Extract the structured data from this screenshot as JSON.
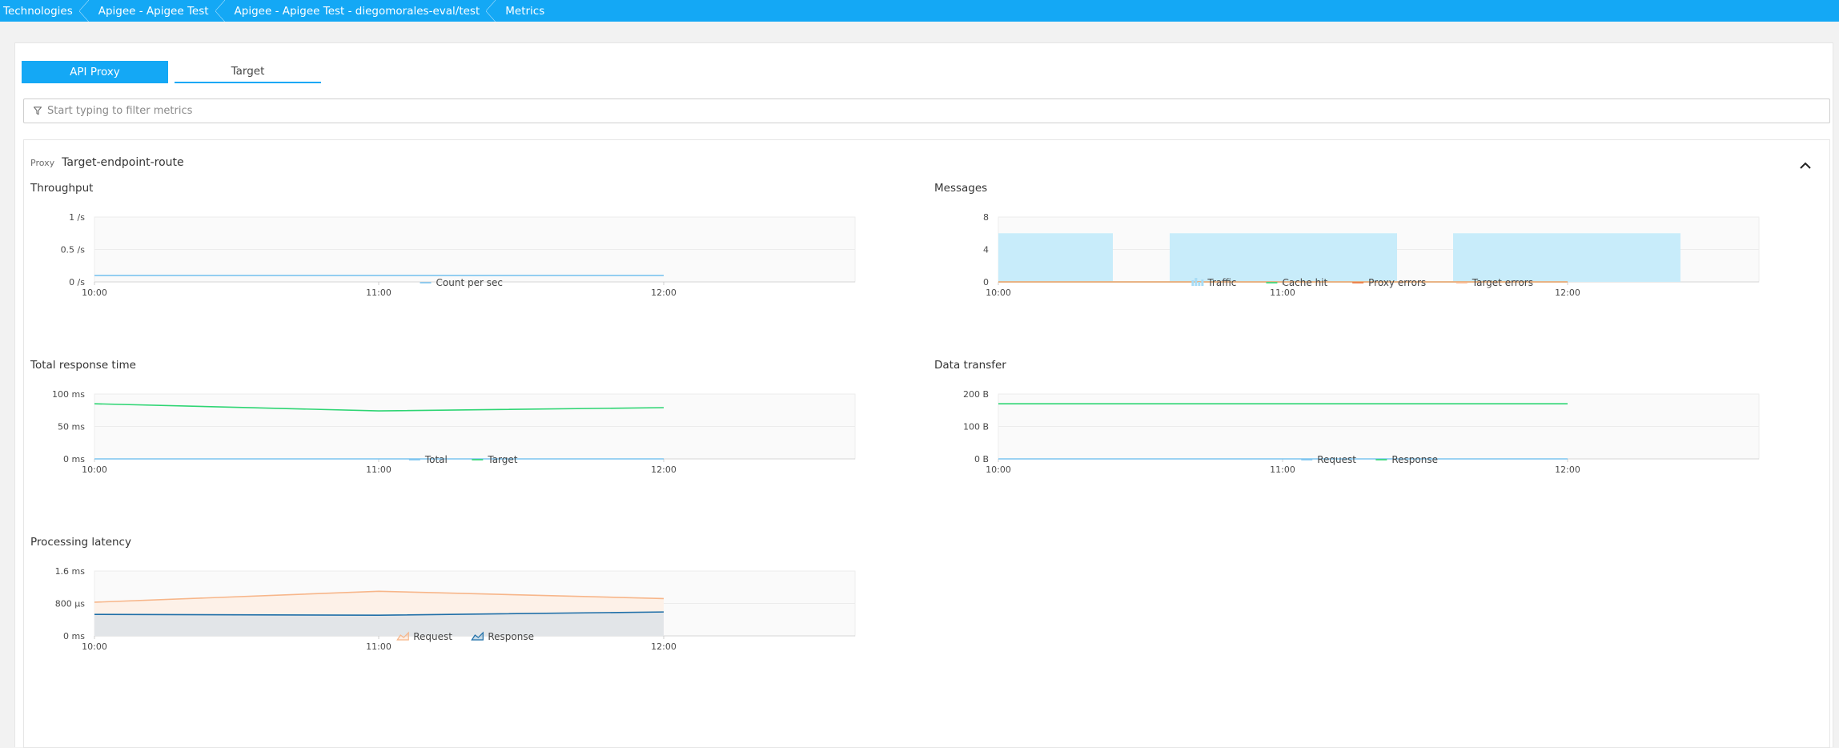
{
  "breadcrumb": [
    "Technologies",
    "Apigee - Apigee Test",
    "Apigee - Apigee Test - diegomorales-eval/test",
    "Metrics"
  ],
  "tabs": [
    {
      "label": "API Proxy",
      "active": true
    },
    {
      "label": "Target",
      "active": false
    }
  ],
  "filter": {
    "placeholder": "Start typing to filter metrics",
    "value": ""
  },
  "section": {
    "kind_label": "Proxy",
    "name": "Target-endpoint-route"
  },
  "colors": {
    "accent": "#14a8f5",
    "light_blue": "#7dc4ef",
    "traffic": "#c8ecfa",
    "green": "#2ed573",
    "proxy_errors": "#e8743b",
    "target_errors": "#f7b68a",
    "dark_blue": "#1f6fa8"
  },
  "chart_data": [
    {
      "id": "throughput",
      "title": "Throughput",
      "type": "line",
      "x_ticks": [
        "10:00",
        "11:00",
        "12:00"
      ],
      "y_ticks": [
        "0 /s",
        "0.5 /s",
        "1 /s"
      ],
      "ylim": [
        0,
        1
      ],
      "series": [
        {
          "name": "Count per sec",
          "style": "line",
          "color": "#7dc4ef",
          "x": [
            "10:00",
            "11:00",
            "12:00"
          ],
          "values": [
            0.1,
            0.1,
            0.1
          ]
        }
      ]
    },
    {
      "id": "messages",
      "title": "Messages",
      "type": "bar",
      "x_ticks": [
        "10:00",
        "11:00",
        "12:00"
      ],
      "y_ticks": [
        "0",
        "4",
        "8"
      ],
      "ylim": [
        0,
        8
      ],
      "series": [
        {
          "name": "Traffic",
          "style": "bar",
          "color": "#c8ecfa",
          "values": [
            6,
            6,
            6
          ]
        },
        {
          "name": "Cache hit",
          "style": "line",
          "color": "#2ed573",
          "values": [
            0,
            0,
            0
          ]
        },
        {
          "name": "Proxy errors",
          "style": "line",
          "color": "#e8743b",
          "values": [
            0,
            0,
            0
          ]
        },
        {
          "name": "Target errors",
          "style": "line",
          "color": "#f7b68a",
          "values": [
            0,
            0,
            0
          ]
        }
      ]
    },
    {
      "id": "total-response-time",
      "title": "Total response time",
      "type": "line",
      "x_ticks": [
        "10:00",
        "11:00",
        "12:00"
      ],
      "y_ticks": [
        "0 ms",
        "50 ms",
        "100 ms"
      ],
      "ylim": [
        0,
        100
      ],
      "series": [
        {
          "name": "Total",
          "style": "line",
          "color": "#7dc4ef",
          "x": [
            "10:00",
            "11:00",
            "12:00"
          ],
          "values": [
            0,
            0,
            0
          ]
        },
        {
          "name": "Target",
          "style": "line",
          "color": "#2ed573",
          "x": [
            "10:00",
            "11:00",
            "12:00"
          ],
          "values": [
            85,
            74,
            79
          ]
        }
      ]
    },
    {
      "id": "data-transfer",
      "title": "Data transfer",
      "type": "line",
      "x_ticks": [
        "10:00",
        "11:00",
        "12:00"
      ],
      "y_ticks": [
        "0 B",
        "100 B",
        "200 B"
      ],
      "ylim": [
        0,
        200
      ],
      "series": [
        {
          "name": "Request",
          "style": "line",
          "color": "#7dc4ef",
          "x": [
            "10:00",
            "11:00",
            "12:00"
          ],
          "values": [
            0,
            0,
            0
          ]
        },
        {
          "name": "Response",
          "style": "line",
          "color": "#2ed573",
          "x": [
            "10:00",
            "11:00",
            "12:00"
          ],
          "values": [
            170,
            170,
            170
          ]
        }
      ]
    },
    {
      "id": "processing-latency",
      "title": "Processing latency",
      "type": "area",
      "x_ticks": [
        "10:00",
        "11:00",
        "12:00"
      ],
      "y_ticks": [
        "0 ms",
        "800 µs",
        "1.6 ms"
      ],
      "ylim": [
        0,
        1600
      ],
      "series": [
        {
          "name": "Request",
          "style": "area",
          "color": "#f7b68a",
          "x": [
            "10:00",
            "11:00",
            "12:00"
          ],
          "values": [
            830,
            1100,
            920
          ]
        },
        {
          "name": "Response",
          "style": "area",
          "color": "#1f6fa8",
          "x": [
            "10:00",
            "11:00",
            "12:00"
          ],
          "values": [
            530,
            510,
            590
          ]
        }
      ]
    }
  ]
}
